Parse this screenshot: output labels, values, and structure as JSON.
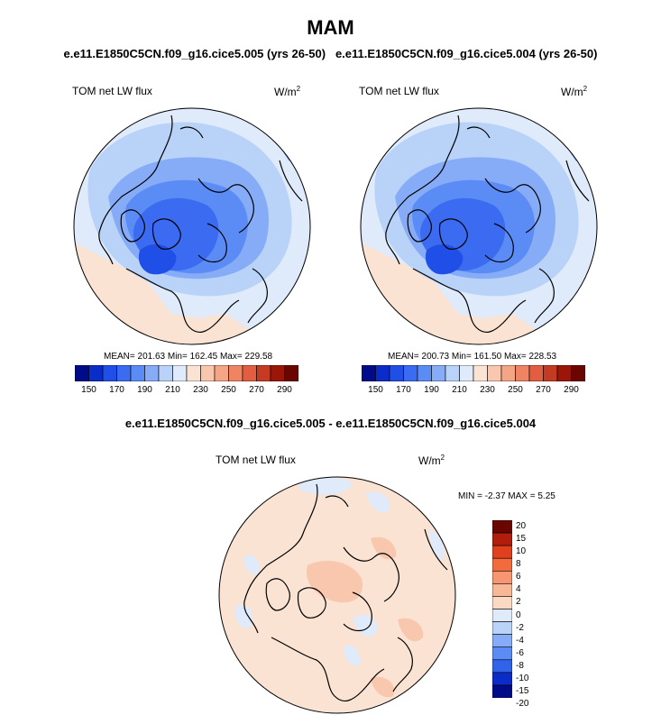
{
  "season": "MAM",
  "run_titles": {
    "left": "e.e11.E1850C5CN.f09_g16.cice5.005 (yrs 26-50)",
    "right": "e.e11.E1850C5CN.f09_g16.cice5.004 (yrs 26-50)"
  },
  "diff_title": "e.e11.E1850C5CN.f09_g16.cice5.005 - e.e11.E1850C5CN.f09_g16.cice5.004",
  "panels": {
    "left": {
      "variable": "TOM net LW flux",
      "units": "W/m",
      "units_sup": "2",
      "stats": "MEAN= 201.63  Min= 162.45  Max= 229.58"
    },
    "right": {
      "variable": "TOM net LW flux",
      "units": "W/m",
      "units_sup": "2",
      "stats": "MEAN= 200.73  Min= 161.50  Max= 228.53"
    },
    "diff": {
      "variable": "TOM net LW flux",
      "units": "W/m",
      "units_sup": "2",
      "stats": "MIN =  -2.37 MAX =   5.25"
    }
  },
  "colorbar_abs": {
    "colors": [
      "#000b8a",
      "#0a2cc8",
      "#1f4fe6",
      "#3a6bf0",
      "#5b8cf5",
      "#86acf7",
      "#b8d2f8",
      "#dfeafa",
      "#fbe3d4",
      "#f8c7ad",
      "#f4a585",
      "#ef8462",
      "#e15f40",
      "#c53a22",
      "#9b1609",
      "#6a0500"
    ],
    "tick_labels": [
      "150",
      "170",
      "190",
      "210",
      "230",
      "250",
      "270",
      "290"
    ]
  },
  "colorbar_diff": {
    "colors": [
      "#6a0500",
      "#b21e0c",
      "#e0401e",
      "#f26b3d",
      "#f79670",
      "#f8b898",
      "#fbd9c3",
      "#dfeafa",
      "#b8d2f8",
      "#86acf7",
      "#5b8cf5",
      "#3062ea",
      "#0a2cc8",
      "#000b8a"
    ],
    "tick_labels": [
      "20",
      "15",
      "10",
      "8",
      "6",
      "4",
      "2",
      "0",
      "-2",
      "-4",
      "-6",
      "-8",
      "-10",
      "-15",
      "-20"
    ]
  },
  "chart_data": [
    {
      "type": "heatmap",
      "projection": "north polar stereographic",
      "title": "TOM net LW flux",
      "units": "W/m2",
      "series": "e.e11.E1850C5CN.f09_g16.cice5.005 (yrs 26-50)",
      "mean": 201.63,
      "min": 162.45,
      "max": 229.58,
      "levels": [
        150,
        160,
        170,
        180,
        190,
        200,
        210,
        220,
        230,
        240,
        250,
        260,
        270,
        280,
        290
      ]
    },
    {
      "type": "heatmap",
      "projection": "north polar stereographic",
      "title": "TOM net LW flux",
      "units": "W/m2",
      "series": "e.e11.E1850C5CN.f09_g16.cice5.004 (yrs 26-50)",
      "mean": 200.73,
      "min": 161.5,
      "max": 228.53,
      "levels": [
        150,
        160,
        170,
        180,
        190,
        200,
        210,
        220,
        230,
        240,
        250,
        260,
        270,
        280,
        290
      ]
    },
    {
      "type": "heatmap",
      "projection": "north polar stereographic",
      "title": "TOM net LW flux",
      "units": "W/m2",
      "series": "e.e11.E1850C5CN.f09_g16.cice5.005 - e.e11.E1850C5CN.f09_g16.cice5.004",
      "min": -2.37,
      "max": 5.25,
      "levels": [
        -20,
        -15,
        -10,
        -8,
        -6,
        -4,
        -2,
        0,
        2,
        4,
        6,
        8,
        10,
        15,
        20
      ]
    }
  ]
}
